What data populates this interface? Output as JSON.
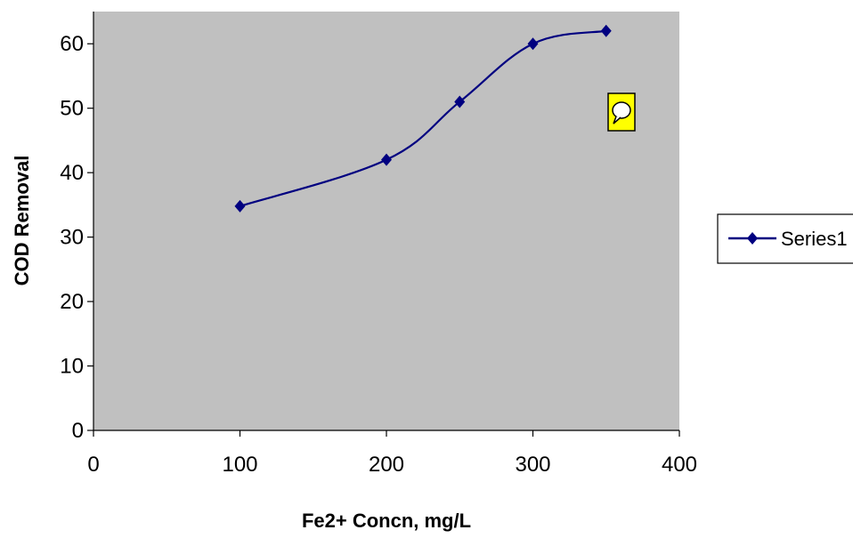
{
  "chart_data": {
    "type": "line",
    "title": "",
    "xlabel": "Fe2+ Concn, mg/L",
    "ylabel": "COD Removal",
    "xlim": [
      0,
      400
    ],
    "ylim": [
      0,
      65
    ],
    "x_ticks": [
      "0",
      "100",
      "200",
      "300",
      "400"
    ],
    "y_ticks": [
      "0",
      "10",
      "20",
      "30",
      "40",
      "50",
      "60"
    ],
    "grid": false,
    "plot_background": "#c0c0c0",
    "legend": "right",
    "series": [
      {
        "name": "Series1",
        "color": "#000080",
        "marker": "diamond",
        "smooth": true,
        "x": [
          100,
          200,
          250,
          300,
          350
        ],
        "y": [
          34.8,
          42,
          51,
          60,
          62
        ]
      }
    ]
  },
  "annotation_icon": "speech-bubble-comment-icon"
}
